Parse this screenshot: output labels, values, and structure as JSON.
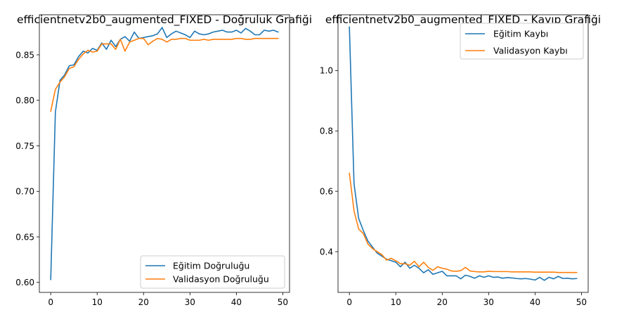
{
  "chart_data": [
    {
      "type": "line",
      "title": "efficientnetv2b0_augmented_FIXED - Doğruluk Grafiği",
      "xlabel": "",
      "ylabel": "",
      "xlim": [
        -2.45,
        51.45
      ],
      "ylim": [
        0.589,
        0.894
      ],
      "xticks": [
        0,
        10,
        20,
        30,
        40,
        50
      ],
      "xtick_labels": [
        "0",
        "10",
        "20",
        "30",
        "40",
        "50"
      ],
      "yticks": [
        0.6,
        0.65,
        0.7,
        0.75,
        0.8,
        0.85
      ],
      "ytick_labels": [
        "0.60",
        "0.65",
        "0.70",
        "0.75",
        "0.80",
        "0.85"
      ],
      "legend_position": "lower-right",
      "grid": false,
      "series": [
        {
          "name": "Eğitim Doğruluğu",
          "color": "#1f77b4",
          "x": [
            0,
            1,
            2,
            3,
            4,
            5,
            6,
            7,
            8,
            9,
            10,
            11,
            12,
            13,
            14,
            15,
            16,
            17,
            18,
            19,
            20,
            21,
            22,
            23,
            24,
            25,
            26,
            27,
            28,
            29,
            30,
            31,
            32,
            33,
            34,
            35,
            36,
            37,
            38,
            39,
            40,
            41,
            42,
            43,
            44,
            45,
            46,
            47,
            48,
            49
          ],
          "values": [
            0.603,
            0.787,
            0.822,
            0.828,
            0.838,
            0.839,
            0.848,
            0.854,
            0.852,
            0.857,
            0.855,
            0.863,
            0.856,
            0.866,
            0.859,
            0.867,
            0.87,
            0.865,
            0.875,
            0.868,
            0.869,
            0.87,
            0.871,
            0.873,
            0.88,
            0.869,
            0.873,
            0.876,
            0.874,
            0.872,
            0.869,
            0.876,
            0.873,
            0.872,
            0.873,
            0.875,
            0.876,
            0.877,
            0.875,
            0.875,
            0.877,
            0.874,
            0.879,
            0.876,
            0.872,
            0.872,
            0.877,
            0.876,
            0.877,
            0.875
          ]
        },
        {
          "name": "Validasyon Doğruluğu",
          "color": "#ff7f0e",
          "x": [
            0,
            1,
            2,
            3,
            4,
            5,
            6,
            7,
            8,
            9,
            10,
            11,
            12,
            13,
            14,
            15,
            16,
            17,
            18,
            19,
            20,
            21,
            22,
            23,
            24,
            25,
            26,
            27,
            28,
            29,
            30,
            31,
            32,
            33,
            34,
            35,
            36,
            37,
            38,
            39,
            40,
            41,
            42,
            43,
            44,
            45,
            46,
            47,
            48,
            49
          ],
          "values": [
            0.788,
            0.812,
            0.82,
            0.826,
            0.835,
            0.837,
            0.845,
            0.851,
            0.855,
            0.853,
            0.854,
            0.862,
            0.862,
            0.862,
            0.856,
            0.867,
            0.854,
            0.864,
            0.866,
            0.868,
            0.868,
            0.861,
            0.865,
            0.868,
            0.867,
            0.864,
            0.867,
            0.867,
            0.868,
            0.868,
            0.866,
            0.866,
            0.866,
            0.867,
            0.866,
            0.867,
            0.867,
            0.867,
            0.867,
            0.867,
            0.868,
            0.868,
            0.867,
            0.867,
            0.868,
            0.868,
            0.868,
            0.868,
            0.868,
            0.868
          ]
        }
      ]
    },
    {
      "type": "line",
      "title": "efficientnetv2b0_augmented_FIXED - Kayıp Grafiği",
      "xlabel": "",
      "ylabel": "",
      "xlim": [
        -2.45,
        51.45
      ],
      "ylim": [
        0.265,
        1.185
      ],
      "xticks": [
        0,
        10,
        20,
        30,
        40,
        50
      ],
      "xtick_labels": [
        "0",
        "10",
        "20",
        "30",
        "40",
        "50"
      ],
      "yticks": [
        0.4,
        0.6,
        0.8,
        1.0
      ],
      "ytick_labels": [
        "0.4",
        "0.6",
        "0.8",
        "1.0"
      ],
      "legend_position": "upper-right",
      "grid": false,
      "series": [
        {
          "name": "Eğitim Kaybı",
          "color": "#1f77b4",
          "x": [
            0,
            1,
            2,
            3,
            4,
            5,
            6,
            7,
            8,
            9,
            10,
            11,
            12,
            13,
            14,
            15,
            16,
            17,
            18,
            19,
            20,
            21,
            22,
            23,
            24,
            25,
            26,
            27,
            28,
            29,
            30,
            31,
            32,
            33,
            34,
            35,
            36,
            37,
            38,
            39,
            40,
            41,
            42,
            43,
            44,
            45,
            46,
            47,
            48,
            49
          ],
          "values": [
            1.145,
            0.625,
            0.51,
            0.47,
            0.435,
            0.415,
            0.395,
            0.385,
            0.375,
            0.37,
            0.365,
            0.35,
            0.365,
            0.345,
            0.355,
            0.345,
            0.33,
            0.34,
            0.325,
            0.33,
            0.335,
            0.32,
            0.32,
            0.32,
            0.31,
            0.322,
            0.318,
            0.312,
            0.32,
            0.315,
            0.32,
            0.315,
            0.316,
            0.312,
            0.314,
            0.313,
            0.311,
            0.31,
            0.311,
            0.309,
            0.306,
            0.315,
            0.305,
            0.315,
            0.31,
            0.318,
            0.311,
            0.312,
            0.31,
            0.311
          ]
        },
        {
          "name": "Validasyon Kaybı",
          "color": "#ff7f0e",
          "x": [
            0,
            1,
            2,
            3,
            4,
            5,
            6,
            7,
            8,
            9,
            10,
            11,
            12,
            13,
            14,
            15,
            16,
            17,
            18,
            19,
            20,
            21,
            22,
            23,
            24,
            25,
            26,
            27,
            28,
            29,
            30,
            31,
            32,
            33,
            34,
            35,
            36,
            37,
            38,
            39,
            40,
            41,
            42,
            43,
            44,
            45,
            46,
            47,
            48,
            49
          ],
          "values": [
            0.66,
            0.535,
            0.475,
            0.46,
            0.425,
            0.41,
            0.4,
            0.39,
            0.372,
            0.378,
            0.37,
            0.36,
            0.36,
            0.355,
            0.368,
            0.35,
            0.365,
            0.348,
            0.338,
            0.35,
            0.345,
            0.342,
            0.336,
            0.335,
            0.337,
            0.348,
            0.336,
            0.334,
            0.333,
            0.333,
            0.335,
            0.334,
            0.334,
            0.334,
            0.334,
            0.333,
            0.333,
            0.333,
            0.333,
            0.333,
            0.332,
            0.332,
            0.332,
            0.332,
            0.332,
            0.331,
            0.331,
            0.331,
            0.331,
            0.331
          ]
        }
      ]
    }
  ]
}
